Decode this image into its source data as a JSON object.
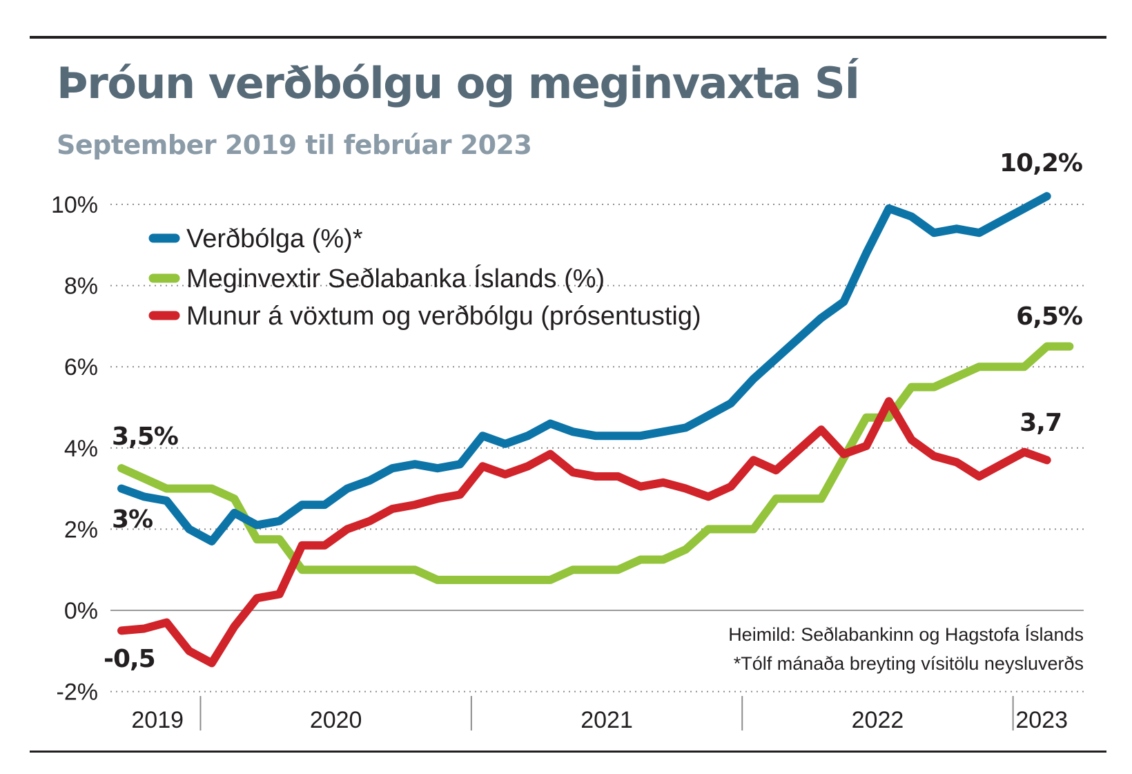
{
  "header": {
    "title": "Þróun verðbólgu og meginvaxta SÍ",
    "subtitle": "September 2019 til febrúar 2023"
  },
  "chart_data": {
    "type": "line",
    "title": "Þróun verðbólgu og meginvaxta SÍ",
    "subtitle": "September 2019 til febrúar 2023",
    "x_start": "2019-09",
    "x_end": "2023-02",
    "x_ticks": [
      "2019",
      "2020",
      "2021",
      "2022",
      "2023"
    ],
    "x_period_boundaries": [
      "2020-01",
      "2021-01",
      "2022-01",
      "2023-01"
    ],
    "ylim": [
      -2,
      10
    ],
    "y_ticks": [
      {
        "value": 10,
        "label": "10%"
      },
      {
        "value": 8,
        "label": "8%"
      },
      {
        "value": 6,
        "label": "6%"
      },
      {
        "value": 4,
        "label": "4%"
      },
      {
        "value": 2,
        "label": "2%"
      },
      {
        "value": 0,
        "label": "0%"
      },
      {
        "value": -2,
        "label": "-2%"
      }
    ],
    "grid": "dotted horizontal",
    "legend_placement": "top-left",
    "series": [
      {
        "name": "Verðbólga (%)*",
        "color": "#0d74a8",
        "points": [
          [
            "2019-09",
            3.0
          ],
          [
            "2019-10",
            2.8
          ],
          [
            "2019-11",
            2.7
          ],
          [
            "2019-12",
            2.0
          ],
          [
            "2020-01",
            1.7
          ],
          [
            "2020-02",
            2.4
          ],
          [
            "2020-03",
            2.1
          ],
          [
            "2020-04",
            2.2
          ],
          [
            "2020-05",
            2.6
          ],
          [
            "2020-06",
            2.6
          ],
          [
            "2020-07",
            3.0
          ],
          [
            "2020-08",
            3.2
          ],
          [
            "2020-09",
            3.5
          ],
          [
            "2020-10",
            3.6
          ],
          [
            "2020-11",
            3.5
          ],
          [
            "2020-12",
            3.6
          ],
          [
            "2021-01",
            4.3
          ],
          [
            "2021-02",
            4.1
          ],
          [
            "2021-03",
            4.3
          ],
          [
            "2021-04",
            4.6
          ],
          [
            "2021-05",
            4.4
          ],
          [
            "2021-06",
            4.3
          ],
          [
            "2021-07",
            4.3
          ],
          [
            "2021-08",
            4.3
          ],
          [
            "2021-09",
            4.4
          ],
          [
            "2021-10",
            4.5
          ],
          [
            "2021-11",
            4.8
          ],
          [
            "2021-12",
            5.1
          ],
          [
            "2022-01",
            5.7
          ],
          [
            "2022-02",
            6.2
          ],
          [
            "2022-03",
            6.7
          ],
          [
            "2022-04",
            7.2
          ],
          [
            "2022-05",
            7.6
          ],
          [
            "2022-06",
            8.8
          ],
          [
            "2022-07",
            9.9
          ],
          [
            "2022-08",
            9.7
          ],
          [
            "2022-09",
            9.3
          ],
          [
            "2022-10",
            9.4
          ],
          [
            "2022-11",
            9.3
          ],
          [
            "2022-12",
            9.6
          ],
          [
            "2023-01",
            9.9
          ],
          [
            "2023-02",
            10.2
          ]
        ]
      },
      {
        "name": "Meginvextir Seðlabanka Íslands (%)",
        "color": "#93c43b",
        "points": [
          [
            "2019-09",
            3.5
          ],
          [
            "2019-10",
            3.25
          ],
          [
            "2019-11",
            3.0
          ],
          [
            "2019-12",
            3.0
          ],
          [
            "2020-01",
            3.0
          ],
          [
            "2020-02",
            2.75
          ],
          [
            "2020-03",
            1.75
          ],
          [
            "2020-04",
            1.75
          ],
          [
            "2020-05",
            1.0
          ],
          [
            "2020-06",
            1.0
          ],
          [
            "2020-07",
            1.0
          ],
          [
            "2020-08",
            1.0
          ],
          [
            "2020-09",
            1.0
          ],
          [
            "2020-10",
            1.0
          ],
          [
            "2020-11",
            0.75
          ],
          [
            "2020-12",
            0.75
          ],
          [
            "2021-01",
            0.75
          ],
          [
            "2021-02",
            0.75
          ],
          [
            "2021-03",
            0.75
          ],
          [
            "2021-04",
            0.75
          ],
          [
            "2021-05",
            1.0
          ],
          [
            "2021-06",
            1.0
          ],
          [
            "2021-07",
            1.0
          ],
          [
            "2021-08",
            1.25
          ],
          [
            "2021-09",
            1.25
          ],
          [
            "2021-10",
            1.5
          ],
          [
            "2021-11",
            2.0
          ],
          [
            "2021-12",
            2.0
          ],
          [
            "2022-01",
            2.0
          ],
          [
            "2022-02",
            2.75
          ],
          [
            "2022-03",
            2.75
          ],
          [
            "2022-04",
            2.75
          ],
          [
            "2022-05",
            3.75
          ],
          [
            "2022-06",
            4.75
          ],
          [
            "2022-07",
            4.75
          ],
          [
            "2022-08",
            5.5
          ],
          [
            "2022-09",
            5.5
          ],
          [
            "2022-10",
            5.75
          ],
          [
            "2022-11",
            6.0
          ],
          [
            "2022-12",
            6.0
          ],
          [
            "2023-01",
            6.0
          ],
          [
            "2023-02",
            6.5
          ],
          [
            "2023-03",
            6.5
          ]
        ]
      },
      {
        "name": "Munur á vöxtum og verðbólgu (prósentustig)",
        "color": "#d0232a",
        "points": [
          [
            "2019-09",
            -0.5
          ],
          [
            "2019-10",
            -0.45
          ],
          [
            "2019-11",
            -0.3
          ],
          [
            "2019-12",
            -1.0
          ],
          [
            "2020-01",
            -1.3
          ],
          [
            "2020-02",
            -0.4
          ],
          [
            "2020-03",
            0.3
          ],
          [
            "2020-04",
            0.4
          ],
          [
            "2020-05",
            1.6
          ],
          [
            "2020-06",
            1.6
          ],
          [
            "2020-07",
            2.0
          ],
          [
            "2020-08",
            2.2
          ],
          [
            "2020-09",
            2.5
          ],
          [
            "2020-10",
            2.6
          ],
          [
            "2020-11",
            2.75
          ],
          [
            "2020-12",
            2.85
          ],
          [
            "2021-01",
            3.55
          ],
          [
            "2021-02",
            3.35
          ],
          [
            "2021-03",
            3.55
          ],
          [
            "2021-04",
            3.85
          ],
          [
            "2021-05",
            3.4
          ],
          [
            "2021-06",
            3.3
          ],
          [
            "2021-07",
            3.3
          ],
          [
            "2021-08",
            3.05
          ],
          [
            "2021-09",
            3.15
          ],
          [
            "2021-10",
            3.0
          ],
          [
            "2021-11",
            2.8
          ],
          [
            "2021-12",
            3.05
          ],
          [
            "2022-01",
            3.7
          ],
          [
            "2022-02",
            3.45
          ],
          [
            "2022-03",
            3.95
          ],
          [
            "2022-04",
            4.45
          ],
          [
            "2022-05",
            3.85
          ],
          [
            "2022-06",
            4.05
          ],
          [
            "2022-07",
            5.15
          ],
          [
            "2022-08",
            4.2
          ],
          [
            "2022-09",
            3.8
          ],
          [
            "2022-10",
            3.65
          ],
          [
            "2022-11",
            3.3
          ],
          [
            "2022-12",
            3.6
          ],
          [
            "2023-01",
            3.9
          ],
          [
            "2023-02",
            3.7
          ]
        ]
      }
    ],
    "annotations": [
      "3,5%",
      "3%",
      "-0,5",
      "10,2%",
      "6,5%",
      "3,7"
    ],
    "source_notes": [
      "Heimild: Seðlabankinn og Hagstofa Íslands",
      "*Tólf mánaða breyting vísitölu neysluverðs"
    ]
  }
}
